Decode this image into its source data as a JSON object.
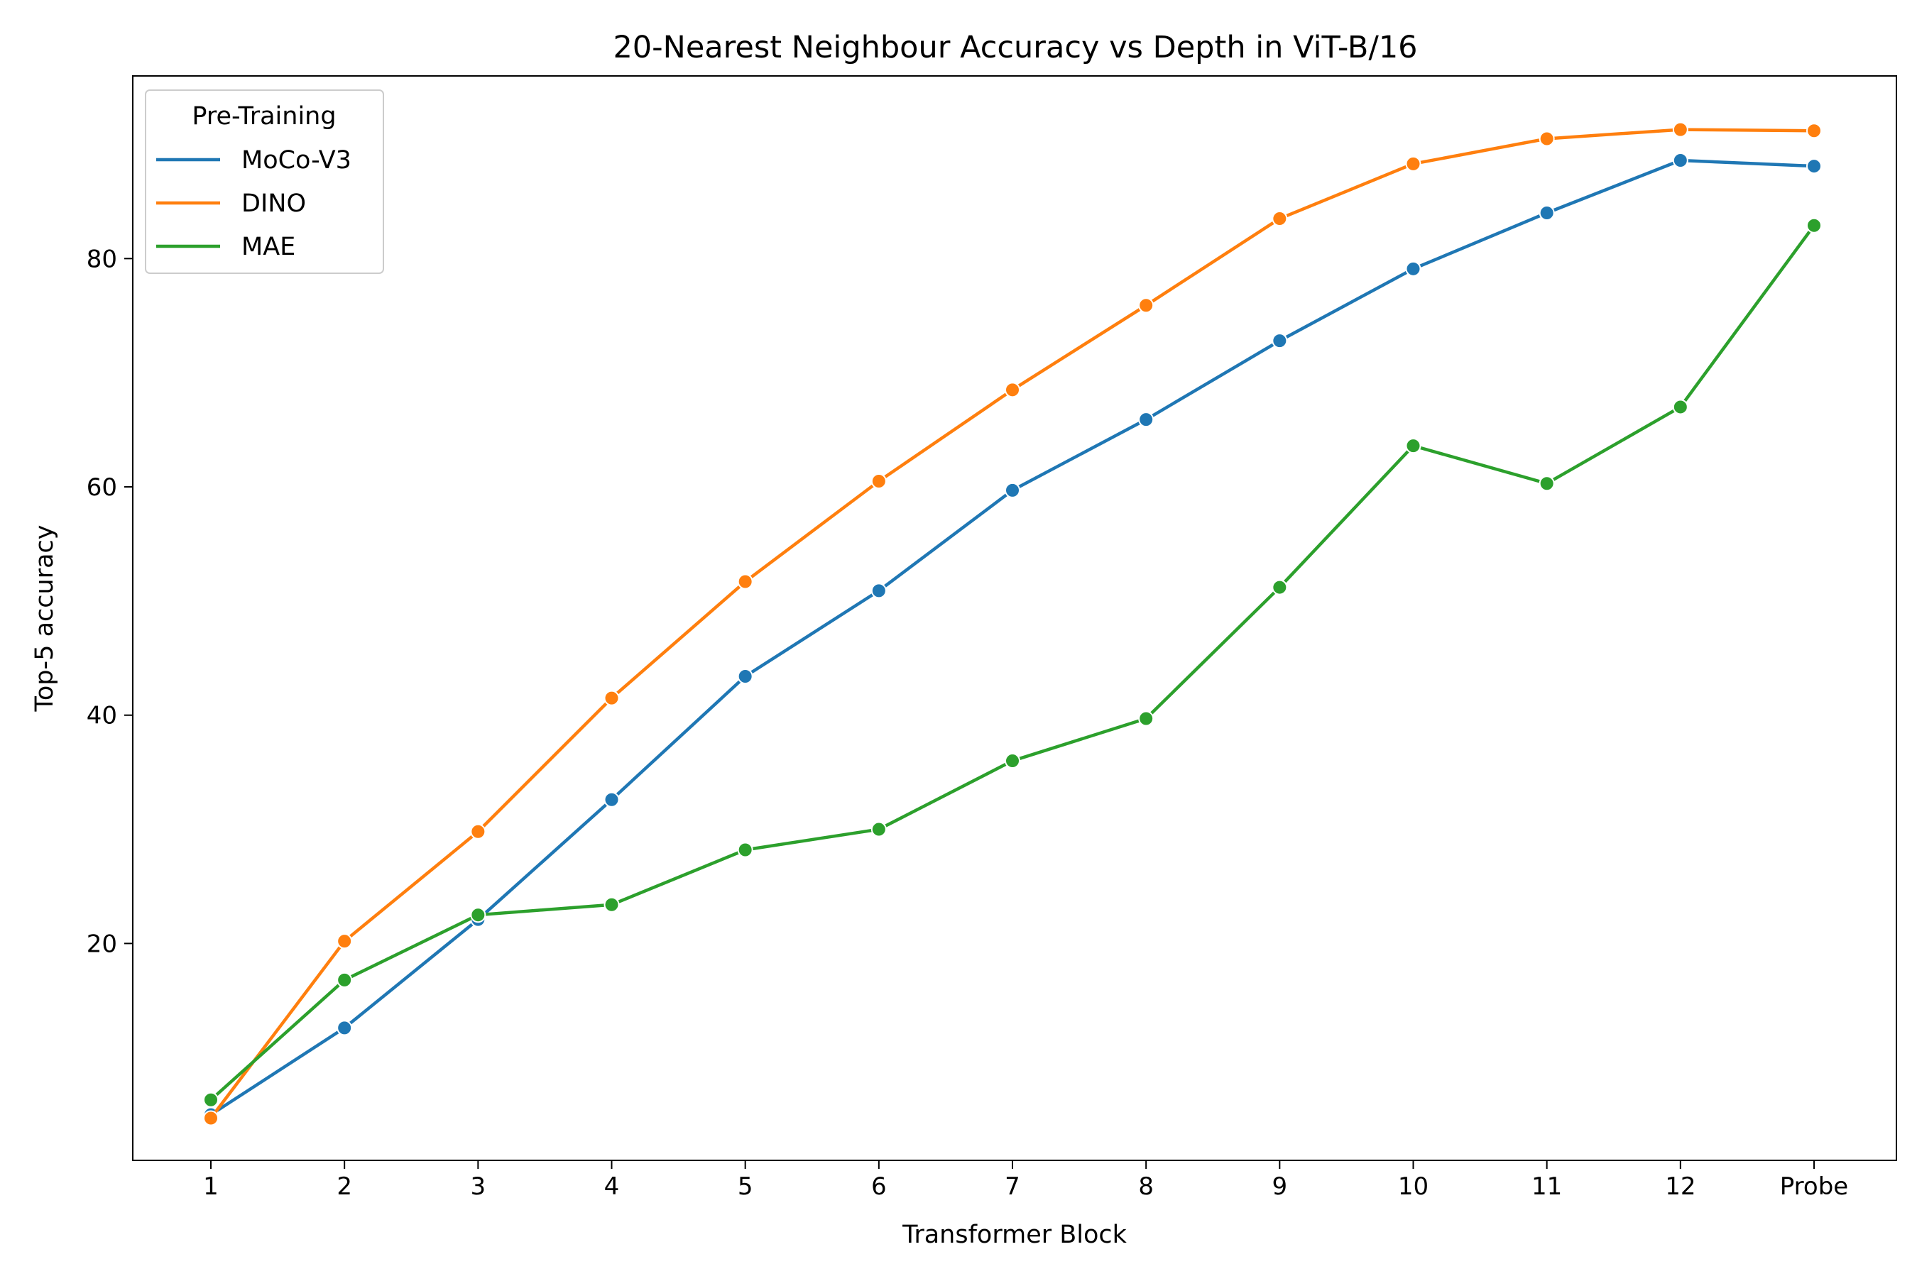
{
  "chart_data": {
    "type": "line",
    "title": "20-Nearest Neighbour Accuracy vs Depth in ViT-B/16",
    "xlabel": "Transformer Block",
    "ylabel": "Top-5 accuracy",
    "categories": [
      "1",
      "2",
      "3",
      "4",
      "5",
      "6",
      "7",
      "8",
      "9",
      "10",
      "11",
      "12",
      "Probe"
    ],
    "ylim": [
      1.0,
      96.0
    ],
    "yticks": [
      20,
      40,
      60,
      80
    ],
    "grid": false,
    "legend": {
      "title": "Pre-Training",
      "position": "top-left"
    },
    "series": [
      {
        "name": "MoCo-V3",
        "color": "#1f77b4",
        "marker": "circle",
        "values": [
          5.0,
          12.6,
          22.1,
          32.6,
          43.4,
          50.9,
          59.7,
          65.9,
          72.8,
          79.1,
          84.0,
          88.6,
          88.1
        ]
      },
      {
        "name": "DINO",
        "color": "#ff7f0e",
        "marker": "circle",
        "values": [
          4.7,
          20.2,
          29.8,
          41.5,
          51.7,
          60.5,
          68.5,
          75.9,
          83.5,
          88.3,
          90.5,
          91.3,
          91.2
        ]
      },
      {
        "name": "MAE",
        "color": "#2ca02c",
        "marker": "circle",
        "values": [
          6.3,
          16.8,
          22.5,
          23.4,
          28.2,
          30.0,
          36.0,
          39.7,
          51.2,
          63.6,
          60.3,
          67.0,
          82.9
        ]
      }
    ]
  }
}
